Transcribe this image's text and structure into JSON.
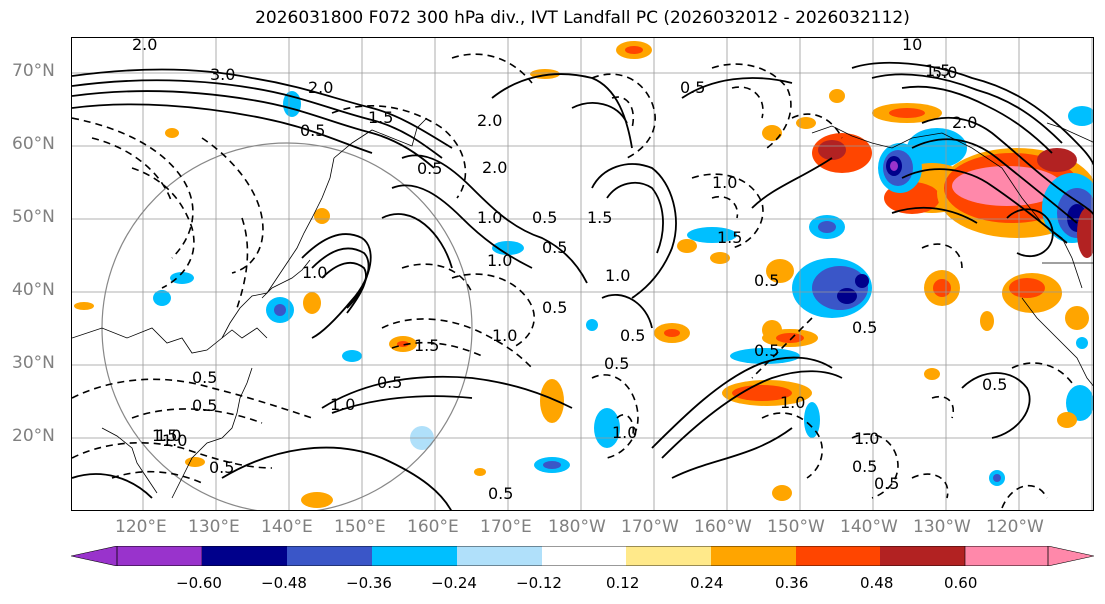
{
  "title": "2026031800 F072 300 hPa div., IVT Landfall PC (2026032012 - 2026032112)",
  "lat_labels": [
    "70°N",
    "60°N",
    "50°N",
    "40°N",
    "30°N",
    "20°N"
  ],
  "lon_labels": [
    "120°E",
    "130°E",
    "140°E",
    "150°E",
    "160°E",
    "170°E",
    "180°W",
    "170°W",
    "160°W",
    "150°W",
    "140°W",
    "130°W",
    "120°W"
  ],
  "colorbar": {
    "tick_labels": [
      "−0.60",
      "−0.48",
      "−0.36",
      "−0.24",
      "−0.12",
      "0.12",
      "0.24",
      "0.36",
      "0.48",
      "0.60"
    ],
    "bin_colors": [
      "#9933cc",
      "#00008b",
      "#3a56c8",
      "#00bfff",
      "#b0e0fa",
      "#ffffff",
      "#ffe98a",
      "#ffa500",
      "#ff4500",
      "#b22222",
      "#ff88aa"
    ]
  },
  "contour_labels": [
    "2.0",
    "3.0",
    "2.0",
    "1.5",
    "0.5",
    "0.5",
    "2.0",
    "2.0",
    "1.0",
    "0.5",
    "1.0",
    "1.5",
    "1.0",
    "0.5",
    "0.5",
    "1.0",
    "1.5",
    "0.5",
    "1.0",
    "0.5",
    "0.5",
    "1.0",
    "0.5",
    "1.0",
    "1.5",
    "1.0",
    "0.5",
    "0.5",
    "0.5",
    "1.0",
    "0.5",
    "1.5",
    "0.5",
    "0.5",
    "1.0",
    "1.0",
    "0.5",
    "0.5",
    "0.5",
    "1.0",
    "0.5",
    "5.0",
    "1.5",
    "2.0",
    "10"
  ]
}
